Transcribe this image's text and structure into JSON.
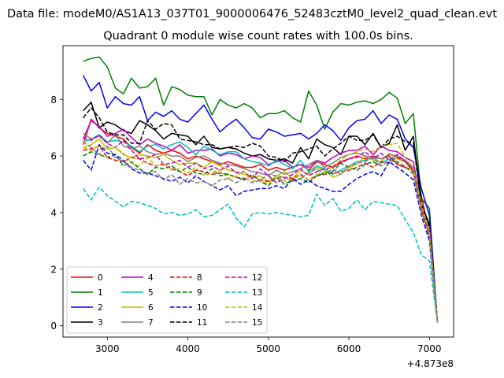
{
  "chart_data": {
    "type": "line",
    "suptitle": "Data file: modeM0/AS1A13_037T01_9000006476_52483cztM0_level2_quad_clean.evt",
    "title": "Quadrant 0 module wise count rates with 100.0s bins.",
    "xlabel": "",
    "ylabel": "",
    "x_offset_label": "+4.873e8",
    "xlim": [
      2450,
      7300
    ],
    "ylim": [
      -0.4,
      9.9
    ],
    "xticks": [
      3000,
      4000,
      5000,
      6000,
      7000
    ],
    "yticks": [
      0,
      2,
      4,
      6,
      8
    ],
    "legend_position": "lower-left",
    "x": [
      2700,
      2800,
      2900,
      3000,
      3100,
      3200,
      3300,
      3400,
      3500,
      3600,
      3700,
      3800,
      3900,
      4000,
      4100,
      4200,
      4300,
      4400,
      4500,
      4600,
      4700,
      4800,
      4900,
      5000,
      5100,
      5200,
      5300,
      5400,
      5500,
      5600,
      5700,
      5800,
      5900,
      6000,
      6100,
      6200,
      6300,
      6400,
      6500,
      6600,
      6700,
      6800,
      6900,
      7000,
      7100
    ],
    "series": [
      {
        "name": "0",
        "color": "#ff0000",
        "dash": "solid",
        "values": [
          6.4,
          7.3,
          7.0,
          6.8,
          6.7,
          6.6,
          6.3,
          6.1,
          6.4,
          6.2,
          6.1,
          6.2,
          6.1,
          5.9,
          6.0,
          5.9,
          5.8,
          5.7,
          5.8,
          5.7,
          5.6,
          5.6,
          5.7,
          5.5,
          5.6,
          5.5,
          5.6,
          5.7,
          5.5,
          5.8,
          5.7,
          5.6,
          5.8,
          5.9,
          6.0,
          5.9,
          6.0,
          5.9,
          6.0,
          5.7,
          5.6,
          5.5,
          4.6,
          3.2,
          0.1
        ]
      },
      {
        "name": "1",
        "color": "#008000",
        "dash": "solid",
        "values": [
          9.35,
          9.45,
          9.5,
          9.15,
          8.4,
          8.2,
          8.75,
          8.4,
          8.45,
          8.75,
          7.8,
          8.45,
          8.35,
          8.15,
          8.1,
          8.1,
          7.45,
          8.0,
          7.8,
          7.7,
          7.85,
          7.7,
          7.35,
          7.5,
          7.5,
          7.6,
          7.35,
          7.2,
          8.3,
          7.8,
          6.95,
          7.55,
          7.85,
          7.8,
          7.9,
          7.95,
          7.85,
          8.0,
          8.25,
          8.05,
          7.15,
          7.5,
          4.5,
          4.15,
          0.1
        ]
      },
      {
        "name": "2",
        "color": "#0000ff",
        "dash": "solid",
        "values": [
          8.85,
          8.3,
          8.6,
          7.7,
          8.1,
          7.85,
          7.8,
          8.1,
          7.25,
          7.55,
          7.4,
          7.6,
          7.3,
          7.2,
          7.5,
          7.8,
          7.3,
          6.85,
          7.1,
          7.3,
          7.0,
          6.65,
          6.6,
          6.95,
          6.85,
          6.7,
          6.75,
          6.8,
          6.6,
          6.8,
          7.1,
          6.9,
          6.55,
          7.0,
          7.25,
          7.3,
          7.6,
          7.15,
          7.45,
          7.3,
          6.6,
          6.3,
          4.85,
          3.9,
          0.1
        ]
      },
      {
        "name": "3",
        "color": "#000000",
        "dash": "solid",
        "values": [
          7.6,
          7.9,
          7.0,
          7.2,
          7.1,
          6.9,
          6.8,
          7.25,
          7.1,
          6.9,
          6.6,
          6.8,
          6.75,
          6.7,
          6.4,
          6.7,
          6.3,
          6.25,
          6.3,
          6.25,
          6.1,
          6.0,
          6.05,
          5.9,
          5.85,
          5.9,
          5.75,
          6.3,
          5.9,
          6.6,
          6.4,
          6.3,
          6.05,
          6.7,
          6.7,
          6.4,
          6.8,
          6.3,
          6.45,
          7.1,
          6.2,
          6.7,
          4.3,
          3.6,
          0.1
        ]
      },
      {
        "name": "4",
        "color": "#bf00bf",
        "dash": "solid",
        "values": [
          6.6,
          7.25,
          7.05,
          6.7,
          6.8,
          6.95,
          6.65,
          6.4,
          6.6,
          6.45,
          6.35,
          6.2,
          6.4,
          6.1,
          6.2,
          6.2,
          6.25,
          6.0,
          6.1,
          6.05,
          5.9,
          6.0,
          5.95,
          5.7,
          5.8,
          5.85,
          5.6,
          5.7,
          5.6,
          5.85,
          5.75,
          5.95,
          6.1,
          6.2,
          6.2,
          6.35,
          6.05,
          6.35,
          6.2,
          6.15,
          5.95,
          5.8,
          4.2,
          3.5,
          0.1
        ]
      },
      {
        "name": "5",
        "color": "#00bfbf",
        "dash": "solid",
        "values": [
          6.5,
          6.6,
          6.75,
          6.5,
          6.55,
          6.5,
          6.35,
          6.15,
          6.35,
          6.4,
          6.25,
          6.4,
          6.5,
          6.3,
          6.05,
          6.35,
          6.2,
          6.05,
          6.15,
          6.15,
          5.9,
          5.8,
          5.75,
          5.65,
          5.85,
          5.7,
          5.55,
          5.85,
          5.45,
          5.65,
          5.55,
          5.35,
          5.5,
          5.65,
          5.8,
          5.85,
          5.95,
          5.75,
          5.9,
          5.95,
          5.85,
          5.55,
          4.2,
          3.4,
          0.1
        ]
      },
      {
        "name": "6",
        "color": "#bfbf00",
        "dash": "solid",
        "values": [
          6.3,
          6.4,
          6.6,
          6.25,
          6.3,
          6.05,
          5.95,
          6.05,
          6.0,
          5.95,
          6.05,
          5.85,
          5.7,
          5.75,
          5.75,
          5.6,
          5.8,
          5.65,
          5.5,
          5.45,
          5.35,
          5.25,
          5.3,
          5.1,
          5.3,
          5.45,
          5.2,
          5.5,
          5.35,
          5.6,
          5.5,
          5.25,
          5.35,
          5.6,
          5.7,
          6.0,
          5.85,
          5.8,
          6.1,
          5.9,
          5.8,
          5.4,
          4.1,
          3.3,
          0.1
        ]
      },
      {
        "name": "7",
        "color": "#808080",
        "dash": "solid",
        "values": [
          6.8,
          6.6,
          6.7,
          6.45,
          6.75,
          6.35,
          6.25,
          6.35,
          6.15,
          6.05,
          6.1,
          6.0,
          6.0,
          5.8,
          5.95,
          6.0,
          5.85,
          5.75,
          5.7,
          5.65,
          5.55,
          5.45,
          5.4,
          5.3,
          5.5,
          5.35,
          5.45,
          5.55,
          5.7,
          5.85,
          5.6,
          5.75,
          5.95,
          6.05,
          6.1,
          6.0,
          5.95,
          5.9,
          6.05,
          6.0,
          5.85,
          5.6,
          4.3,
          3.4,
          0.1
        ]
      },
      {
        "name": "8",
        "color": "#ff0000",
        "dash": "dash",
        "values": [
          6.2,
          6.25,
          6.35,
          5.95,
          5.85,
          5.8,
          5.95,
          5.9,
          5.75,
          5.65,
          5.7,
          5.55,
          5.45,
          5.3,
          5.5,
          5.45,
          5.35,
          5.4,
          5.35,
          5.25,
          5.2,
          5.3,
          5.15,
          5.1,
          5.2,
          5.25,
          5.2,
          5.35,
          5.15,
          5.3,
          5.35,
          5.4,
          5.45,
          5.5,
          5.6,
          5.75,
          5.6,
          5.8,
          5.75,
          5.95,
          5.8,
          5.5,
          4.1,
          3.2,
          0.1
        ]
      },
      {
        "name": "9",
        "color": "#008000",
        "dash": "dash",
        "values": [
          6.0,
          6.15,
          6.05,
          5.95,
          6.05,
          5.65,
          5.8,
          5.55,
          5.35,
          5.6,
          5.55,
          5.65,
          5.45,
          5.6,
          5.4,
          5.35,
          5.55,
          5.3,
          5.35,
          5.25,
          5.15,
          5.35,
          5.1,
          4.95,
          5.25,
          5.0,
          5.15,
          5.2,
          5.05,
          5.3,
          5.4,
          5.45,
          5.75,
          5.6,
          5.5,
          5.7,
          5.8,
          5.65,
          5.85,
          5.8,
          5.6,
          5.4,
          4.0,
          3.1,
          0.1
        ]
      },
      {
        "name": "10",
        "color": "#0000ff",
        "dash": "dash",
        "values": [
          5.85,
          5.5,
          6.4,
          6.1,
          6.05,
          5.85,
          5.55,
          5.4,
          5.4,
          5.3,
          5.2,
          5.1,
          5.25,
          5.05,
          5.3,
          5.1,
          4.95,
          4.8,
          4.95,
          4.6,
          4.75,
          4.8,
          4.85,
          4.85,
          4.95,
          4.85,
          5.2,
          5.0,
          5.15,
          4.95,
          4.85,
          4.75,
          4.75,
          5.0,
          5.2,
          5.35,
          5.45,
          5.3,
          5.8,
          5.6,
          5.4,
          5.15,
          3.9,
          3.0,
          0.1
        ]
      },
      {
        "name": "11",
        "color": "#000000",
        "dash": "dash",
        "values": [
          7.35,
          7.7,
          7.35,
          6.85,
          6.75,
          6.75,
          6.45,
          6.45,
          7.25,
          6.95,
          7.15,
          7.1,
          6.6,
          6.55,
          6.5,
          6.4,
          6.4,
          6.25,
          6.3,
          6.35,
          6.3,
          6.45,
          6.35,
          6.0,
          5.95,
          5.8,
          6.1,
          6.15,
          6.25,
          6.35,
          6.0,
          6.25,
          6.45,
          6.7,
          6.55,
          6.55,
          6.75,
          6.3,
          6.6,
          6.7,
          6.5,
          6.45,
          4.3,
          3.5,
          0.1
        ]
      },
      {
        "name": "12",
        "color": "#bf00bf",
        "dash": "dash",
        "values": [
          6.65,
          6.55,
          6.75,
          6.45,
          6.3,
          6.55,
          6.2,
          5.9,
          5.95,
          6.05,
          5.7,
          5.75,
          5.85,
          5.6,
          5.75,
          5.55,
          5.65,
          5.5,
          5.65,
          5.4,
          5.45,
          5.2,
          5.55,
          5.3,
          5.05,
          5.2,
          5.35,
          5.55,
          5.3,
          5.45,
          5.55,
          5.6,
          5.75,
          5.9,
          5.95,
          6.15,
          5.9,
          6.1,
          5.85,
          6.05,
          5.8,
          5.5,
          4.2,
          3.4,
          0.1
        ]
      },
      {
        "name": "13",
        "color": "#00bfbf",
        "dash": "dash",
        "values": [
          4.85,
          4.45,
          4.9,
          4.6,
          4.4,
          4.2,
          4.4,
          4.35,
          4.25,
          4.15,
          3.95,
          4.0,
          3.9,
          3.95,
          4.1,
          3.85,
          3.9,
          4.1,
          4.3,
          3.8,
          3.5,
          3.95,
          4.0,
          3.95,
          4.0,
          3.95,
          3.9,
          3.85,
          3.9,
          4.65,
          4.25,
          4.5,
          4.05,
          4.15,
          4.45,
          4.1,
          4.4,
          4.35,
          4.3,
          4.25,
          3.75,
          3.3,
          2.5,
          2.3,
          0.1
        ]
      },
      {
        "name": "14",
        "color": "#bfbf00",
        "dash": "dash",
        "values": [
          6.3,
          6.2,
          6.35,
          6.25,
          6.3,
          6.1,
          5.75,
          5.65,
          5.95,
          5.65,
          5.75,
          5.5,
          5.55,
          5.4,
          5.6,
          5.3,
          5.4,
          5.5,
          5.2,
          5.3,
          5.45,
          5.1,
          5.15,
          5.0,
          5.3,
          5.1,
          5.2,
          5.3,
          5.15,
          5.35,
          5.45,
          5.65,
          5.85,
          6.05,
          6.15,
          6.25,
          6.15,
          6.35,
          6.4,
          6.45,
          5.95,
          5.55,
          4.25,
          3.35,
          0.1
        ]
      },
      {
        "name": "15",
        "color": "#808080",
        "dash": "dash",
        "values": [
          6.5,
          6.3,
          6.05,
          6.35,
          5.95,
          5.8,
          5.6,
          5.5,
          5.4,
          5.45,
          5.15,
          5.35,
          5.0,
          5.2,
          5.05,
          5.1,
          4.95,
          5.15,
          5.2,
          5.05,
          5.25,
          5.05,
          5.15,
          5.35,
          5.3,
          5.25,
          5.1,
          5.2,
          5.4,
          5.55,
          5.35,
          5.55,
          5.35,
          5.65,
          5.75,
          5.8,
          5.95,
          5.65,
          5.85,
          5.75,
          5.65,
          5.35,
          4.0,
          3.15,
          0.1
        ]
      }
    ]
  }
}
